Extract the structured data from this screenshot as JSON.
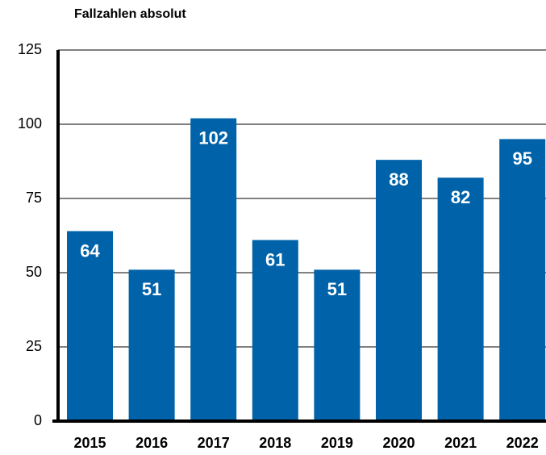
{
  "chart_data": {
    "type": "bar",
    "title": "Fallzahlen absolut",
    "categories": [
      "2015",
      "2016",
      "2017",
      "2018",
      "2019",
      "2020",
      "2021",
      "2022"
    ],
    "values": [
      64,
      51,
      102,
      61,
      51,
      88,
      82,
      95
    ],
    "color": "#0062a8",
    "ylim": [
      0,
      125
    ],
    "yticks": [
      0,
      25,
      50,
      75,
      100,
      125
    ],
    "grid": true
  }
}
